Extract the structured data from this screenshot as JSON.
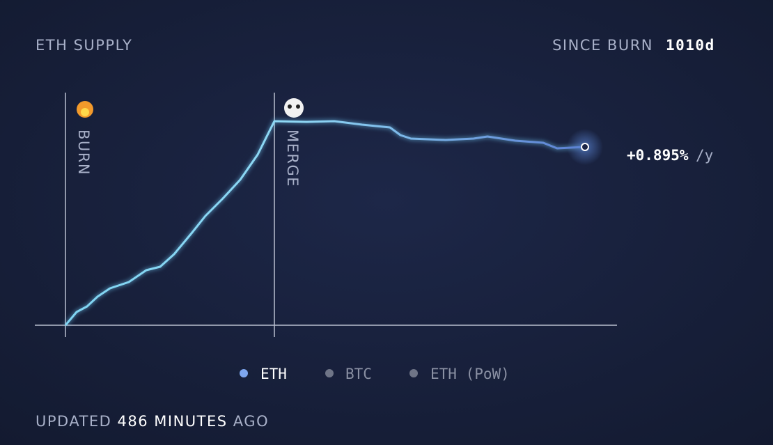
{
  "header": {
    "title": "ETH SUPPLY",
    "since_label": "SINCE BURN",
    "since_value": "1010d"
  },
  "chart": {
    "markers": [
      {
        "label": "BURN"
      },
      {
        "label": "MERGE"
      }
    ],
    "rate": "+0.895%",
    "rate_unit": "/y"
  },
  "legend": [
    "ETH",
    "BTC",
    "ETH (PoW)"
  ],
  "footer": {
    "prefix": "UPDATED",
    "value": "486 MINUTES",
    "suffix": "AGO"
  }
}
